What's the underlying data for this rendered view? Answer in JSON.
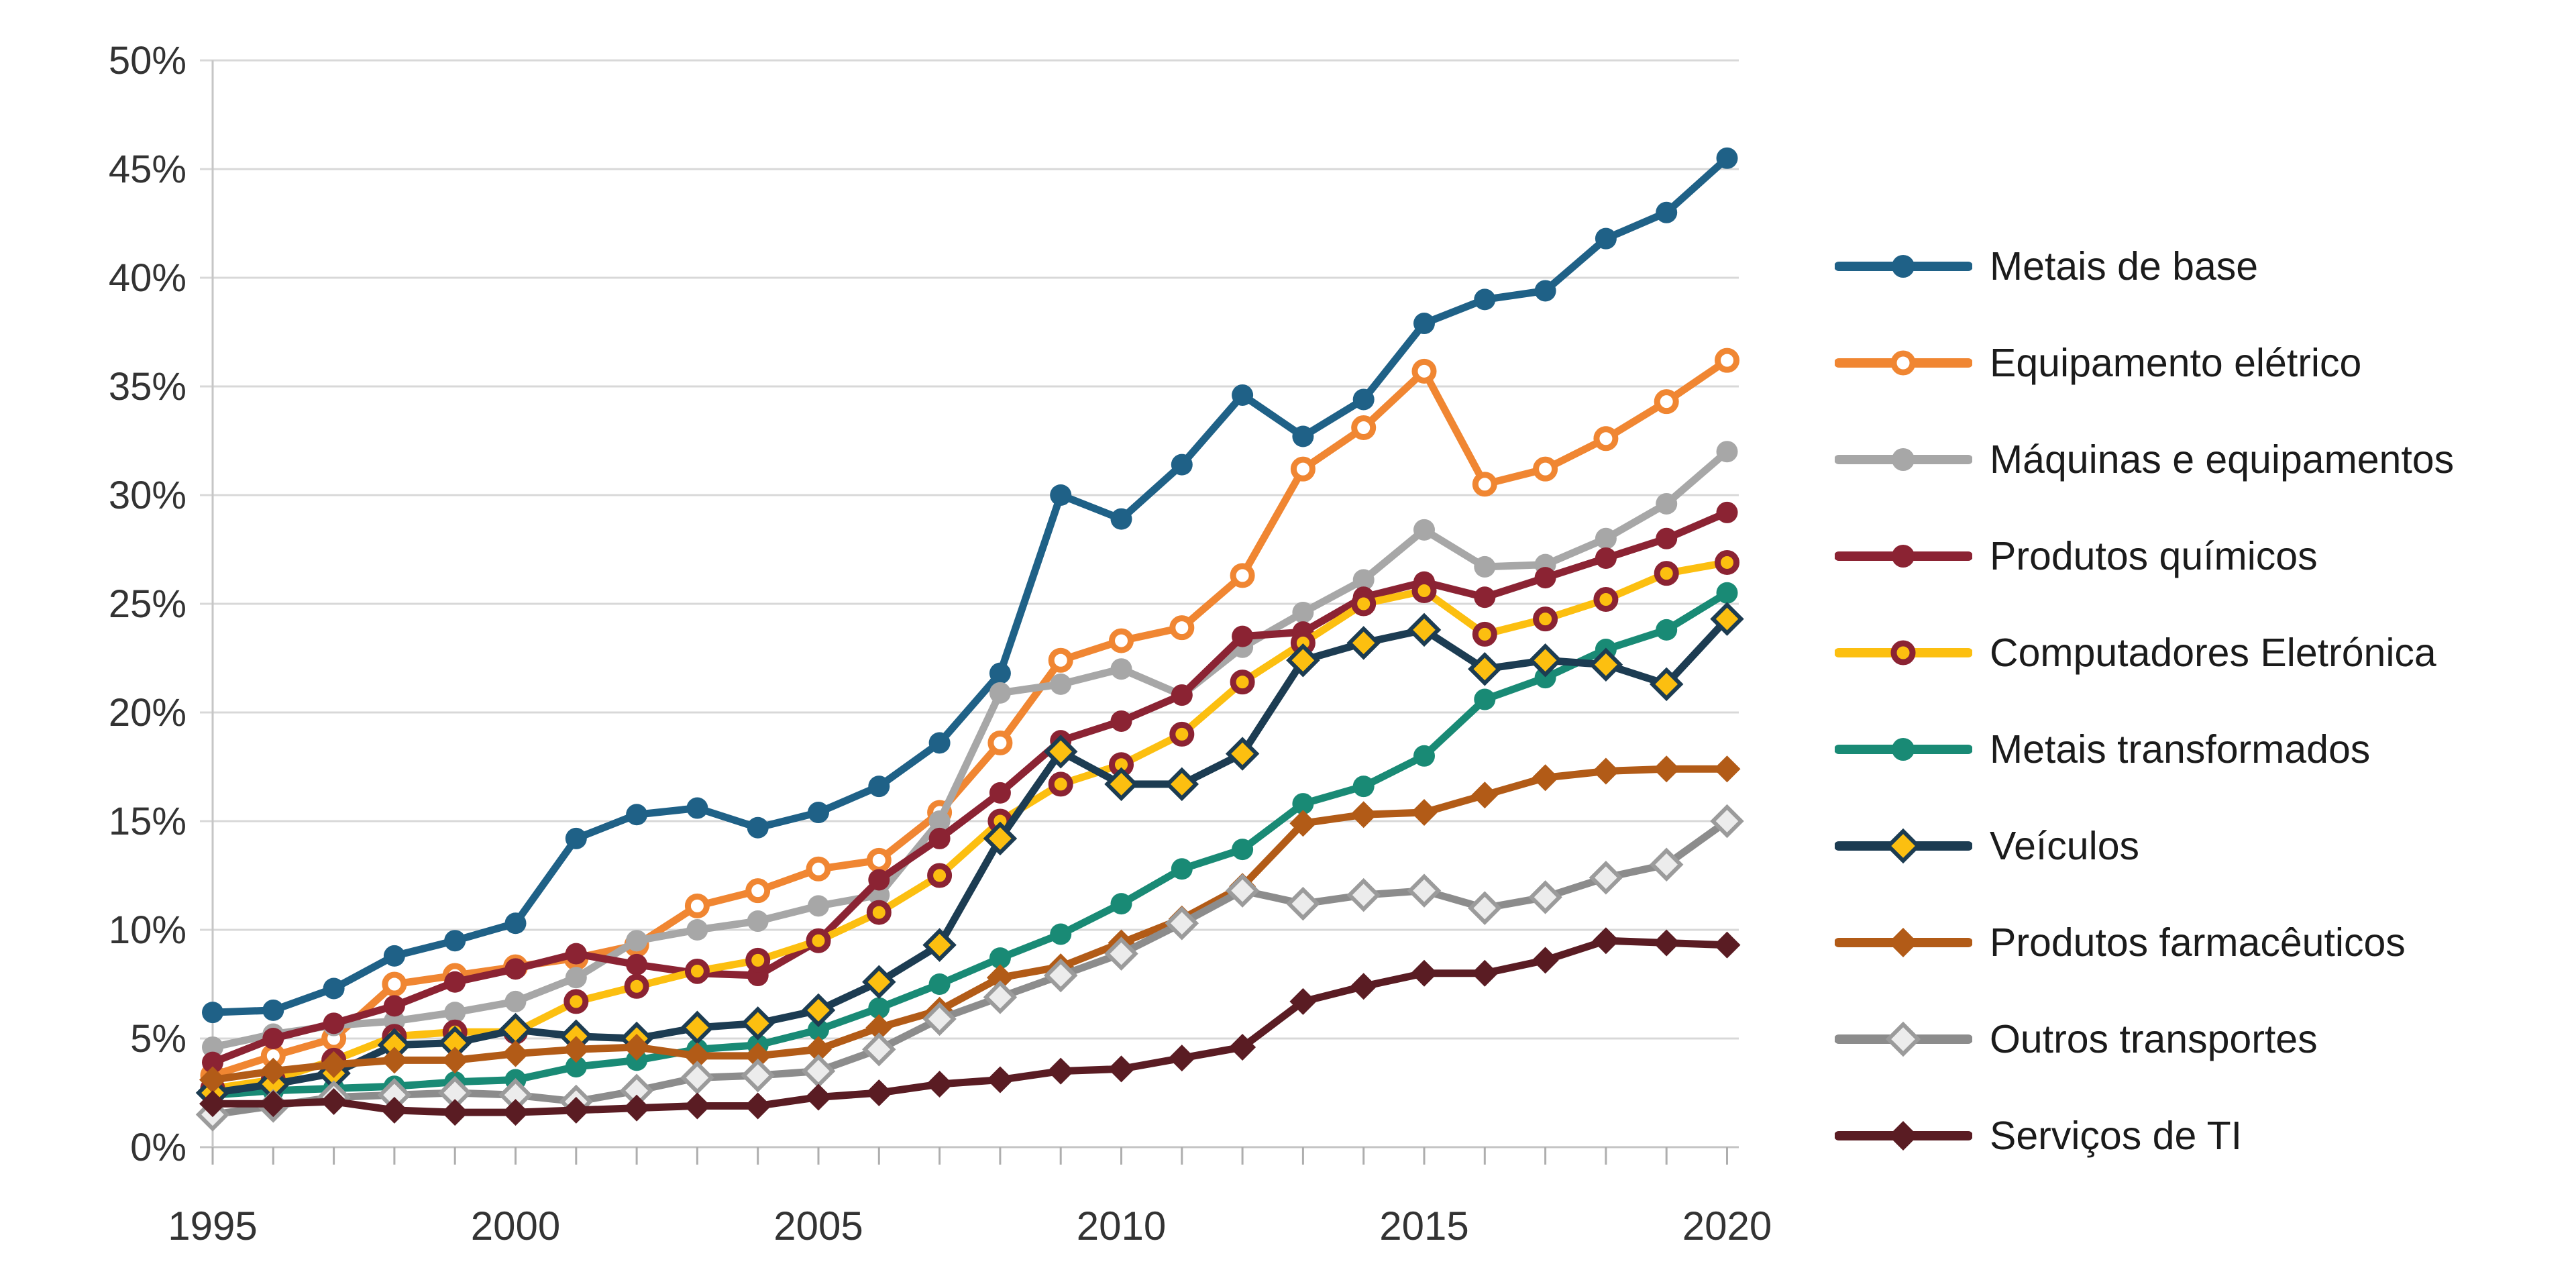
{
  "chart_data": {
    "type": "line",
    "title": "",
    "xlabel": "",
    "ylabel": "",
    "x": [
      1995,
      1996,
      1997,
      1998,
      1999,
      2000,
      2001,
      2002,
      2003,
      2004,
      2005,
      2006,
      2007,
      2008,
      2009,
      2010,
      2011,
      2012,
      2013,
      2014,
      2015,
      2016,
      2017,
      2018,
      2019,
      2020
    ],
    "x_tick_labels": [
      "1995",
      "2000",
      "2005",
      "2010",
      "2015",
      "2020"
    ],
    "y_tick_labels": [
      "0%",
      "5%",
      "10%",
      "15%",
      "20%",
      "25%",
      "30%",
      "35%",
      "40%",
      "45%",
      "50%"
    ],
    "ylim": [
      0,
      50
    ],
    "grid": true,
    "legend_position": "right",
    "colors": {
      "background": "#ffffff",
      "gridline": "#d8d8d8",
      "axis_line": "#c6c6c6",
      "tick_mark": "#aeaeae",
      "tick_text": "#333333",
      "legend_text": "#1b1b1b"
    },
    "series": [
      {
        "name": "Metais de base",
        "slug": "metais-de-base",
        "line_color": "#1f6187",
        "marker": "circle",
        "marker_fill": "#1f6187",
        "marker_stroke": "none",
        "values": [
          6.2,
          6.3,
          7.3,
          8.8,
          9.5,
          10.3,
          14.2,
          15.3,
          15.6,
          14.7,
          15.4,
          16.6,
          18.6,
          21.8,
          30.0,
          28.9,
          31.4,
          34.6,
          32.7,
          34.4,
          37.9,
          39.0,
          39.4,
          41.8,
          43.0,
          45.5
        ]
      },
      {
        "name": "Equipamento elétrico",
        "slug": "equipamento-eletrico",
        "line_color": "#f08632",
        "marker": "circle-open",
        "marker_fill": "#ffffff",
        "marker_stroke": "#f08632",
        "values": [
          3.3,
          4.2,
          5.0,
          7.5,
          7.9,
          8.3,
          8.7,
          9.3,
          11.1,
          11.8,
          12.8,
          13.2,
          15.4,
          18.6,
          22.4,
          23.3,
          23.9,
          26.3,
          31.2,
          33.1,
          35.7,
          30.5,
          31.2,
          32.6,
          34.3,
          36.2
        ]
      },
      {
        "name": "Máquinas e equipamentos",
        "slug": "maquinas-e-equipamentos",
        "line_color": "#a7a7a7",
        "marker": "circle",
        "marker_fill": "#a7a7a7",
        "marker_stroke": "none",
        "values": [
          4.6,
          5.2,
          5.6,
          5.8,
          6.2,
          6.7,
          7.8,
          9.5,
          10.0,
          10.4,
          11.1,
          11.6,
          15.0,
          20.9,
          21.3,
          22.0,
          20.8,
          23.0,
          24.6,
          26.1,
          28.4,
          26.7,
          26.8,
          28.0,
          29.6,
          32.0
        ]
      },
      {
        "name": "Produtos químicos",
        "slug": "produtos-quimicos",
        "line_color": "#8b2333",
        "marker": "circle",
        "marker_fill": "#8b2333",
        "marker_stroke": "none",
        "values": [
          3.9,
          5.0,
          5.7,
          6.5,
          7.6,
          8.2,
          8.9,
          8.4,
          8.0,
          7.9,
          9.5,
          12.3,
          14.2,
          16.3,
          18.7,
          19.6,
          20.8,
          23.5,
          23.7,
          25.3,
          26.0,
          25.3,
          26.2,
          27.1,
          28.0,
          29.2
        ]
      },
      {
        "name": "Computadores Eletrónica",
        "slug": "computadores-eletronica",
        "line_color": "#fcbf10",
        "marker": "circle-ring",
        "marker_fill": "#fcbf10",
        "marker_stroke": "#8b2333",
        "values": [
          2.7,
          3.1,
          4.0,
          5.1,
          5.3,
          5.3,
          6.7,
          7.4,
          8.1,
          8.6,
          9.5,
          10.8,
          12.5,
          15.0,
          16.7,
          17.6,
          19.0,
          21.4,
          23.2,
          25.0,
          25.6,
          23.6,
          24.3,
          25.2,
          26.4,
          26.9
        ]
      },
      {
        "name": "Metais transformados",
        "slug": "metais-transformados",
        "line_color": "#198a75",
        "marker": "circle",
        "marker_fill": "#198a75",
        "marker_stroke": "none",
        "values": [
          2.4,
          2.6,
          2.7,
          2.8,
          3.0,
          3.1,
          3.7,
          4.0,
          4.5,
          4.7,
          5.4,
          6.4,
          7.5,
          8.7,
          9.8,
          11.2,
          12.8,
          13.7,
          15.8,
          16.6,
          18.0,
          20.6,
          21.6,
          22.9,
          23.8,
          25.5
        ]
      },
      {
        "name": "Veículos",
        "slug": "veiculos",
        "line_color": "#1c3c52",
        "marker": "diamond",
        "marker_fill": "#fcbf10",
        "marker_stroke": "#1c3c52",
        "values": [
          2.5,
          2.9,
          3.4,
          4.7,
          4.8,
          5.4,
          5.1,
          5.0,
          5.5,
          5.7,
          6.3,
          7.6,
          9.3,
          14.2,
          18.2,
          16.7,
          16.7,
          18.1,
          22.4,
          23.2,
          23.8,
          22.0,
          22.4,
          22.2,
          21.3,
          24.3
        ]
      },
      {
        "name": "Produtos farmacêuticos",
        "slug": "produtos-farmaceuticos",
        "line_color": "#b25b17",
        "marker": "diamond",
        "marker_fill": "#b25b17",
        "marker_stroke": "none",
        "values": [
          3.1,
          3.5,
          3.8,
          4.0,
          4.0,
          4.3,
          4.5,
          4.6,
          4.2,
          4.2,
          4.5,
          5.5,
          6.3,
          7.8,
          8.3,
          9.4,
          10.5,
          12.0,
          14.9,
          15.3,
          15.4,
          16.2,
          17.0,
          17.3,
          17.4,
          17.4
        ]
      },
      {
        "name": "Outros transportes",
        "slug": "outros-transportes",
        "line_color": "#8c8c8c",
        "marker": "diamond",
        "marker_fill": "#ececec",
        "marker_stroke": "#9b9b9b",
        "values": [
          1.5,
          1.9,
          2.3,
          2.4,
          2.5,
          2.4,
          2.1,
          2.6,
          3.2,
          3.3,
          3.5,
          4.5,
          5.9,
          6.9,
          7.9,
          8.9,
          10.3,
          11.8,
          11.2,
          11.6,
          11.8,
          11.0,
          11.5,
          12.4,
          13.0,
          15.0
        ]
      },
      {
        "name": "Serviços de TI",
        "slug": "servicos-de-ti",
        "line_color": "#5a1c23",
        "marker": "diamond",
        "marker_fill": "#5a1c23",
        "marker_stroke": "none",
        "values": [
          2.0,
          2.0,
          2.1,
          1.7,
          1.6,
          1.6,
          1.7,
          1.8,
          1.9,
          1.9,
          2.3,
          2.5,
          2.9,
          3.1,
          3.5,
          3.6,
          4.1,
          4.6,
          6.7,
          7.4,
          8.0,
          8.0,
          8.6,
          9.5,
          9.4,
          9.3
        ]
      }
    ]
  }
}
